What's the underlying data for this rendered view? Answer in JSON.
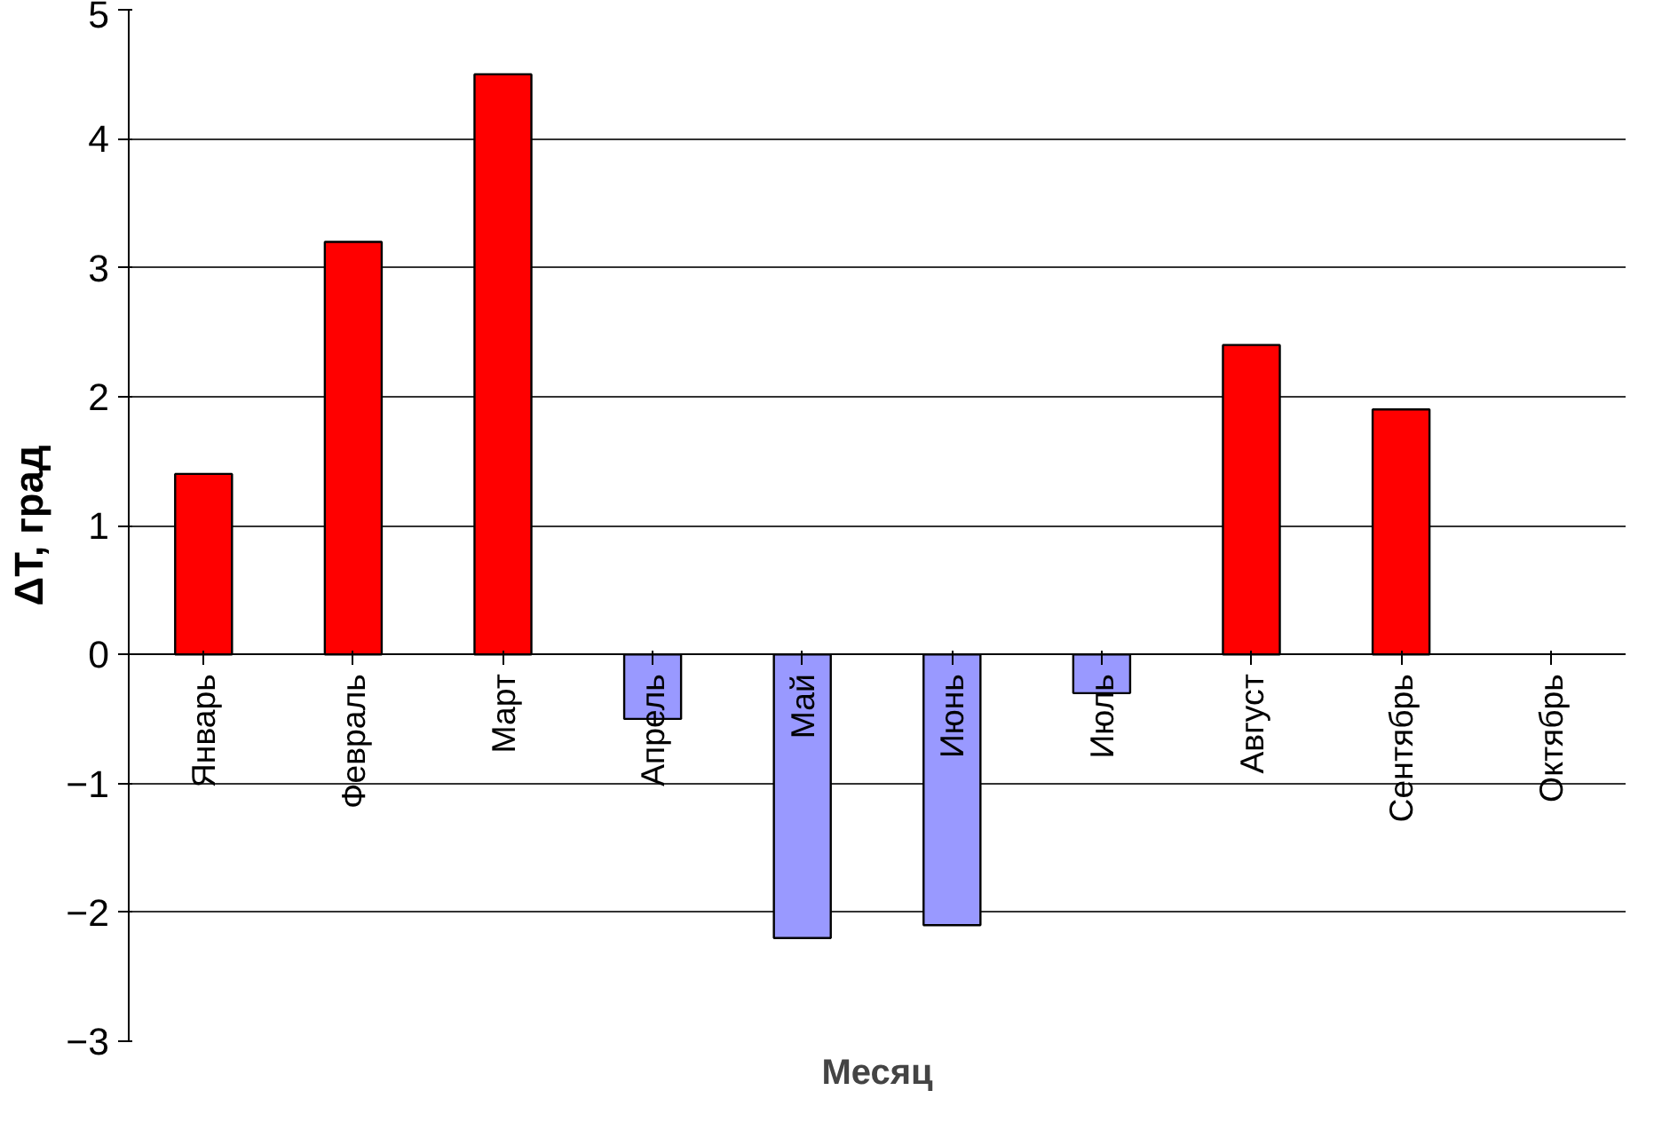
{
  "chart_data": {
    "type": "bar",
    "xlabel": "Месяц",
    "ylabel": "ΔT, град",
    "categories": [
      "Январь",
      "Февраль",
      "Март",
      "Апрель",
      "Май",
      "Июнь",
      "Июль",
      "Август",
      "Сентябрь",
      "Октябрь"
    ],
    "values": [
      1.4,
      3.2,
      4.5,
      -0.5,
      -2.2,
      -2.1,
      -0.3,
      2.4,
      1.9,
      null
    ],
    "colors": [
      "#ff0000",
      "#ff0000",
      "#ff0000",
      "#9999ff",
      "#9999ff",
      "#9999ff",
      "#9999ff",
      "#ff0000",
      "#ff0000",
      "#ff0000"
    ],
    "ylim": [
      -3,
      5
    ],
    "yticks": [
      -3,
      -2,
      -1,
      0,
      1,
      2,
      3,
      4,
      5
    ],
    "grid": "y"
  }
}
